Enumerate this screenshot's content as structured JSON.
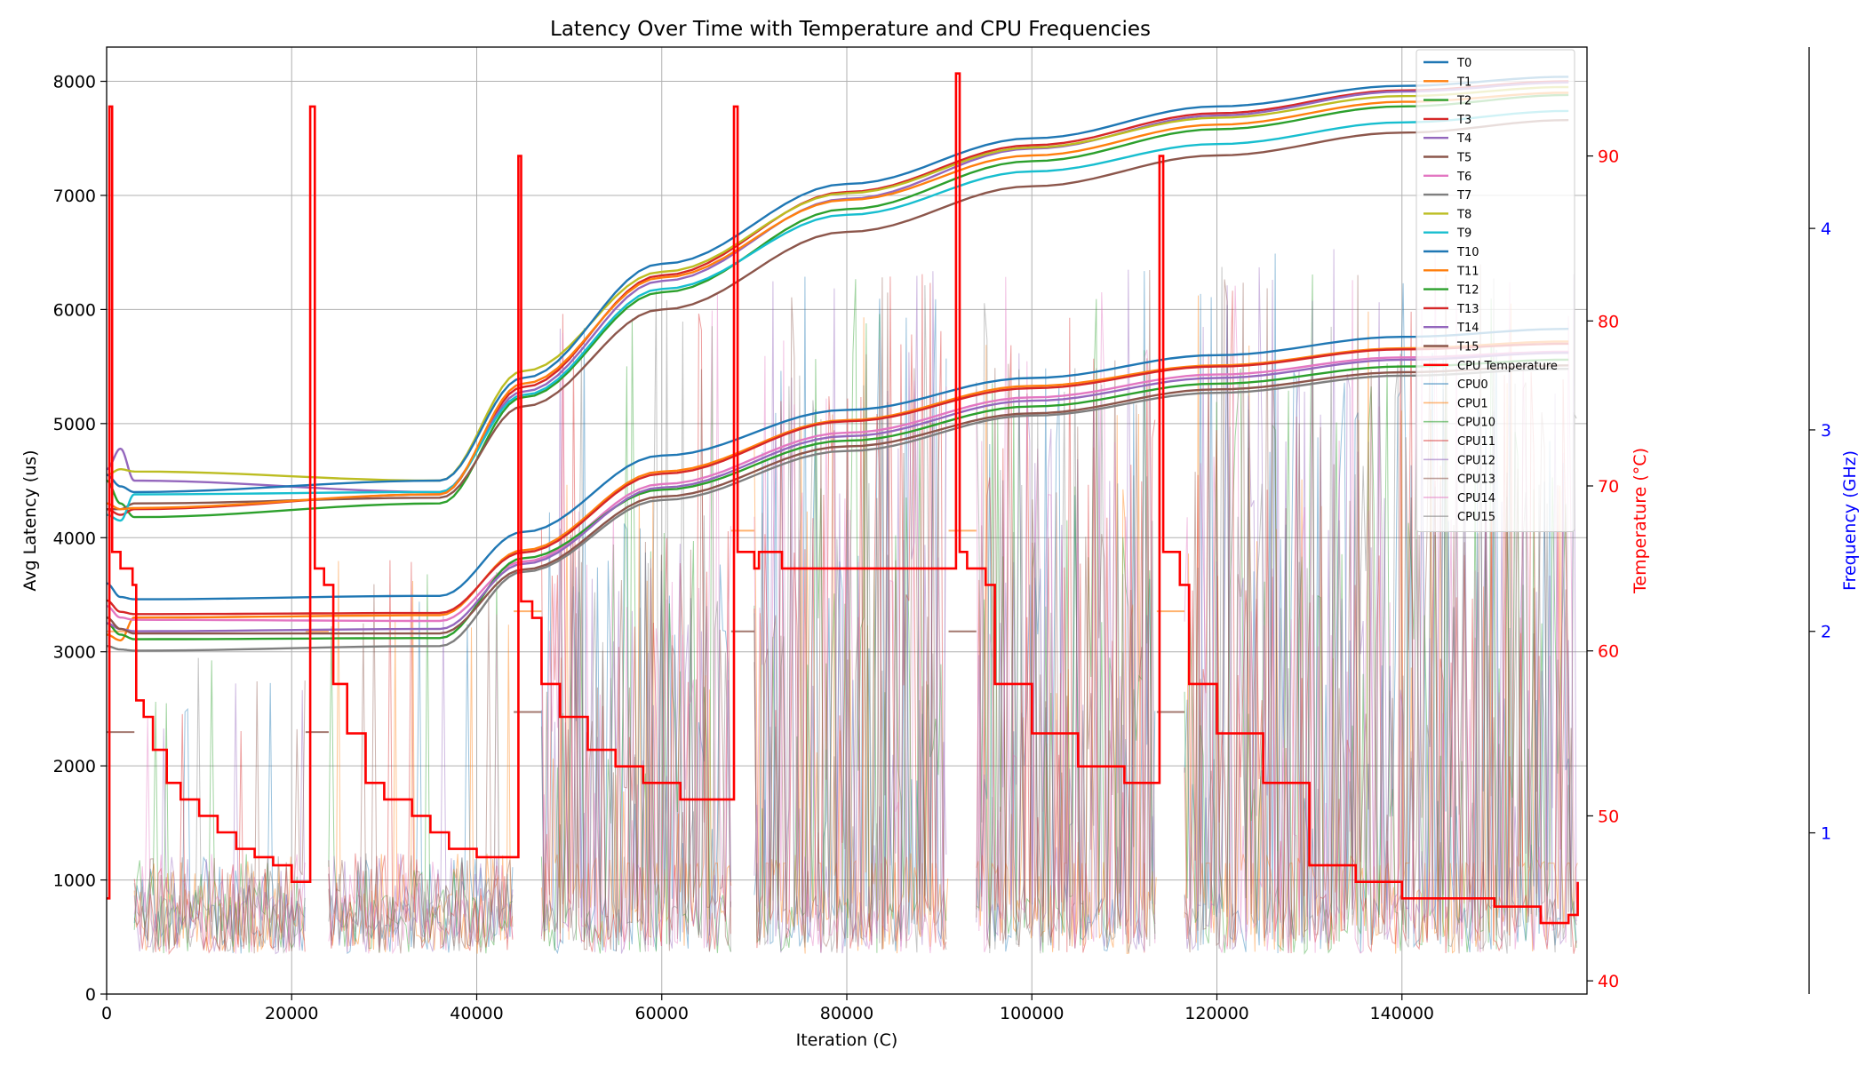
{
  "chart_data": {
    "type": "line",
    "title": "Latency Over Time with Temperature and CPU Frequencies",
    "xlabel": "Iteration (C)",
    "ylabel": "Avg Latency (us)",
    "y2label": "Temperature (°C)",
    "y3label": "Frequency (GHz)",
    "xlim": [
      0,
      160000
    ],
    "ylim": [
      0,
      8300
    ],
    "y2lim": [
      39.2,
      96.6
    ],
    "y3lim": [
      0.2,
      4.9
    ],
    "xticks": [
      0,
      20000,
      40000,
      60000,
      80000,
      100000,
      120000,
      140000
    ],
    "yticks": [
      0,
      1000,
      2000,
      3000,
      4000,
      5000,
      6000,
      7000,
      8000
    ],
    "y2ticks": [
      40,
      50,
      60,
      70,
      80,
      90
    ],
    "y3ticks": [
      1,
      2,
      3,
      4
    ],
    "grid": true,
    "legend_position": "top-right",
    "series": [
      {
        "name": "T0",
        "color": "#1f77b4",
        "x": [
          0,
          1500,
          3000,
          36000,
          45000,
          60000,
          80000,
          100000,
          120000,
          140000,
          158000
        ],
        "y": [
          3600,
          3480,
          3460,
          3490,
          4050,
          4720,
          5120,
          5400,
          5600,
          5760,
          5830
        ]
      },
      {
        "name": "T1",
        "color": "#ff7f0e",
        "x": [
          0,
          1500,
          3000,
          36000,
          45000,
          60000,
          80000,
          100000,
          120000,
          140000,
          158000
        ],
        "y": [
          3150,
          3100,
          3300,
          3320,
          3890,
          4580,
          5030,
          5330,
          5510,
          5660,
          5720
        ]
      },
      {
        "name": "T2",
        "color": "#2ca02c",
        "x": [
          0,
          1500,
          3000,
          36000,
          45000,
          60000,
          80000,
          100000,
          120000,
          140000,
          158000
        ],
        "y": [
          4500,
          4300,
          4180,
          4300,
          5230,
          6150,
          6880,
          7300,
          7580,
          7780,
          7880
        ]
      },
      {
        "name": "T3",
        "color": "#d62728",
        "x": [
          0,
          1500,
          3000,
          36000,
          45000,
          60000,
          80000,
          100000,
          120000,
          140000,
          158000
        ],
        "y": [
          4250,
          4200,
          4250,
          4380,
          5320,
          6300,
          7030,
          7440,
          7720,
          7920,
          8000
        ]
      },
      {
        "name": "T4",
        "color": "#9467bd",
        "x": [
          0,
          1500,
          3000,
          36000,
          45000,
          60000,
          80000,
          100000,
          120000,
          140000,
          158000
        ],
        "y": [
          4600,
          4780,
          4500,
          4400,
          5280,
          6250,
          6970,
          7410,
          7700,
          7910,
          7990
        ]
      },
      {
        "name": "T5",
        "color": "#8c564b",
        "x": [
          0,
          1500,
          3000,
          36000,
          45000,
          60000,
          80000,
          100000,
          120000,
          140000,
          158000
        ],
        "y": [
          4250,
          4250,
          4300,
          4350,
          5150,
          6000,
          6680,
          7080,
          7350,
          7550,
          7660
        ]
      },
      {
        "name": "T6",
        "color": "#e377c2",
        "x": [
          0,
          1500,
          3000,
          36000,
          45000,
          60000,
          80000,
          100000,
          120000,
          140000,
          158000
        ],
        "y": [
          3400,
          3300,
          3280,
          3270,
          3790,
          4470,
          4920,
          5230,
          5430,
          5580,
          5630
        ]
      },
      {
        "name": "T7",
        "color": "#7f7f7f",
        "x": [
          0,
          1500,
          3000,
          36000,
          45000,
          60000,
          80000,
          100000,
          120000,
          140000,
          158000
        ],
        "y": [
          3050,
          3020,
          3010,
          3050,
          3700,
          4330,
          4760,
          5070,
          5270,
          5420,
          5480
        ]
      },
      {
        "name": "T8",
        "color": "#bcbd22",
        "x": [
          0,
          1500,
          3000,
          36000,
          45000,
          60000,
          80000,
          100000,
          120000,
          140000,
          158000
        ],
        "y": [
          4550,
          4600,
          4580,
          4500,
          5460,
          6330,
          7020,
          7420,
          7680,
          7870,
          7950
        ]
      },
      {
        "name": "T9",
        "color": "#17becf",
        "x": [
          0,
          1500,
          3000,
          36000,
          45000,
          60000,
          80000,
          100000,
          120000,
          140000,
          158000
        ],
        "y": [
          4200,
          4150,
          4380,
          4400,
          5250,
          6180,
          6830,
          7210,
          7450,
          7640,
          7740
        ]
      },
      {
        "name": "T10",
        "color": "#1f77b4",
        "x": [
          0,
          1500,
          3000,
          36000,
          45000,
          60000,
          80000,
          100000,
          120000,
          140000,
          158000
        ],
        "y": [
          4550,
          4450,
          4400,
          4500,
          5400,
          6400,
          7100,
          7500,
          7780,
          7960,
          8040
        ]
      },
      {
        "name": "T11",
        "color": "#ff7f0e",
        "x": [
          0,
          1500,
          3000,
          36000,
          45000,
          60000,
          80000,
          100000,
          120000,
          140000,
          158000
        ],
        "y": [
          4300,
          4250,
          4260,
          4380,
          5350,
          6280,
          6960,
          7350,
          7620,
          7820,
          7900
        ]
      },
      {
        "name": "T12",
        "color": "#2ca02c",
        "x": [
          0,
          1500,
          3000,
          36000,
          45000,
          60000,
          80000,
          100000,
          120000,
          140000,
          158000
        ],
        "y": [
          3250,
          3150,
          3110,
          3120,
          3820,
          4420,
          4850,
          5150,
          5350,
          5500,
          5560
        ]
      },
      {
        "name": "T13",
        "color": "#d62728",
        "x": [
          0,
          1500,
          3000,
          36000,
          45000,
          60000,
          80000,
          100000,
          120000,
          140000,
          158000
        ],
        "y": [
          3450,
          3350,
          3330,
          3340,
          3870,
          4560,
          5020,
          5310,
          5500,
          5650,
          5700
        ]
      },
      {
        "name": "T14",
        "color": "#9467bd",
        "x": [
          0,
          1500,
          3000,
          36000,
          45000,
          60000,
          80000,
          100000,
          120000,
          140000,
          158000
        ],
        "y": [
          3250,
          3200,
          3180,
          3200,
          3770,
          4440,
          4890,
          5200,
          5400,
          5560,
          5620
        ]
      },
      {
        "name": "T15",
        "color": "#8c564b",
        "x": [
          0,
          1500,
          3000,
          36000,
          45000,
          60000,
          80000,
          100000,
          120000,
          140000,
          158000
        ],
        "y": [
          3300,
          3200,
          3160,
          3160,
          3720,
          4360,
          4800,
          5090,
          5300,
          5450,
          5510
        ]
      }
    ],
    "temperature": {
      "name": "CPU Temperature",
      "color": "#ff0000",
      "points": [
        [
          0,
          45
        ],
        [
          300,
          93
        ],
        [
          600,
          66
        ],
        [
          1500,
          65
        ],
        [
          2800,
          64
        ],
        [
          3200,
          57
        ],
        [
          4000,
          56
        ],
        [
          5000,
          54
        ],
        [
          6500,
          52
        ],
        [
          8000,
          51
        ],
        [
          10000,
          50
        ],
        [
          12000,
          49
        ],
        [
          14000,
          48
        ],
        [
          16000,
          47.5
        ],
        [
          18000,
          47
        ],
        [
          20000,
          46
        ],
        [
          21500,
          46
        ],
        [
          22000,
          93
        ],
        [
          22500,
          65
        ],
        [
          23500,
          64
        ],
        [
          24000,
          64
        ],
        [
          24500,
          58
        ],
        [
          26000,
          55
        ],
        [
          28000,
          52
        ],
        [
          30000,
          51
        ],
        [
          33000,
          50
        ],
        [
          35000,
          49
        ],
        [
          37000,
          48
        ],
        [
          40000,
          47.5
        ],
        [
          44200,
          47.5
        ],
        [
          44500,
          90
        ],
        [
          44800,
          63
        ],
        [
          46000,
          62
        ],
        [
          47000,
          58
        ],
        [
          49000,
          56
        ],
        [
          52000,
          54
        ],
        [
          55000,
          53
        ],
        [
          58000,
          52
        ],
        [
          62000,
          51
        ],
        [
          67500,
          51
        ],
        [
          67800,
          93
        ],
        [
          68200,
          66
        ],
        [
          70000,
          65
        ],
        [
          70500,
          66
        ],
        [
          73000,
          65
        ],
        [
          76000,
          65
        ],
        [
          80000,
          65
        ],
        [
          90000,
          65
        ],
        [
          91500,
          65
        ],
        [
          91800,
          95
        ],
        [
          92200,
          66
        ],
        [
          93000,
          65
        ],
        [
          95000,
          64
        ],
        [
          96000,
          58
        ],
        [
          100000,
          55
        ],
        [
          105000,
          53
        ],
        [
          110000,
          52
        ],
        [
          113500,
          52
        ],
        [
          113800,
          90
        ],
        [
          114200,
          66
        ],
        [
          116000,
          64
        ],
        [
          117000,
          58
        ],
        [
          120000,
          55
        ],
        [
          125000,
          52
        ],
        [
          130000,
          47
        ],
        [
          135000,
          46
        ],
        [
          140000,
          45
        ],
        [
          150000,
          44.5
        ],
        [
          155000,
          43.5
        ],
        [
          158000,
          44
        ],
        [
          159000,
          46
        ]
      ]
    },
    "cpu_legend": [
      "CPU0",
      "CPU1",
      "CPU10",
      "CPU11",
      "CPU12",
      "CPU13",
      "CPU14",
      "CPU15"
    ],
    "cpu_colors": [
      "#1f77b4",
      "#ff7f0e",
      "#2ca02c",
      "#d62728",
      "#9467bd",
      "#8c564b",
      "#e377c2",
      "#7f7f7f"
    ],
    "cpu_segments": [
      {
        "x0": 3000,
        "x1": 21500,
        "high_ghz": 0.9,
        "low_ghz": 0.4,
        "peak_ghz": 1.5
      },
      {
        "x0": 24000,
        "x1": 44000,
        "high_ghz": 0.9,
        "low_ghz": 0.4,
        "peak_ghz": 2.0
      },
      {
        "x0": 47000,
        "x1": 67500,
        "high_ghz": 2.6,
        "low_ghz": 0.4,
        "peak_ghz": 3.3
      },
      {
        "x0": 70000,
        "x1": 91000,
        "high_ghz": 3.4,
        "low_ghz": 0.4,
        "peak_ghz": 3.4
      },
      {
        "x0": 94000,
        "x1": 113500,
        "high_ghz": 3.4,
        "low_ghz": 0.4,
        "peak_ghz": 3.4
      },
      {
        "x0": 116500,
        "x1": 159000,
        "high_ghz": 3.4,
        "low_ghz": 0.4,
        "peak_ghz": 3.5
      }
    ],
    "cpu_plateaus": [
      {
        "x0": 0,
        "x1": 3000,
        "ghz": 1.5
      },
      {
        "x0": 21500,
        "x1": 24000,
        "ghz": 1.5
      },
      {
        "x0": 44000,
        "x1": 47000,
        "ghz": 1.6
      },
      {
        "x0": 67500,
        "x1": 70000,
        "ghz": 2.0
      },
      {
        "x0": 91000,
        "x1": 94000,
        "ghz": 2.0
      },
      {
        "x0": 113500,
        "x1": 116500,
        "ghz": 1.6
      }
    ]
  }
}
